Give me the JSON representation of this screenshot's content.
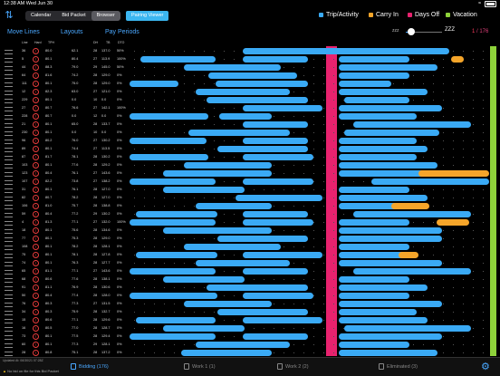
{
  "status": {
    "time": "12:38 AM",
    "date": "Wed Jun 30",
    "wifi": "wifi-icon",
    "battery": "battery-icon"
  },
  "toolbar": {
    "sort_icon": "sort-icon",
    "segments": [
      "Calendar",
      "Bid Packet",
      "Browser"
    ],
    "active_segment": "Browser",
    "pairing_button": "Pairing Viewer"
  },
  "legend": [
    {
      "label": "Trip/Activity",
      "color": "#3aaaf5"
    },
    {
      "label": "Carry In",
      "color": "#f5a52a"
    },
    {
      "label": "Days Off",
      "color": "#e8226e"
    },
    {
      "label": "Vacation",
      "color": "#8ed23a"
    }
  ],
  "nav": {
    "move_lines": "Move Lines",
    "layouts": "Layouts",
    "pay_periods": "Pay Periods"
  },
  "zoom": {
    "small": "zzz",
    "large": "ZZZ",
    "level": 0.1
  },
  "pager": {
    "current": "1",
    "total": "/ 176"
  },
  "columns": [
    "Line",
    "Hard",
    "TPH",
    "DH",
    "TB",
    "DTO"
  ],
  "rows": [
    {
      "line": "36",
      "tph": "80.0",
      "a": "62.1",
      "b": "",
      "c": "28",
      "d": "137.0",
      "e": "50%"
    },
    {
      "line": "5",
      "tph": "80.1",
      "a": "80.4",
      "b": "",
      "c": "27",
      "d": "113.9",
      "e": "100%"
    },
    {
      "line": "44",
      "tph": "88.3",
      "a": "79.0",
      "b": "",
      "c": "29",
      "d": "145.0",
      "e": "50%"
    },
    {
      "line": "64",
      "tph": "81.6",
      "a": "74.2",
      "b": "",
      "c": "28",
      "d": "129.0",
      "e": "0%"
    },
    {
      "line": "111",
      "tph": "80.1",
      "a": "75.0",
      "b": "",
      "c": "28",
      "d": "129.0",
      "e": "0%"
    },
    {
      "line": "12",
      "tph": "82.3",
      "a": "63.0",
      "b": "",
      "c": "27",
      "d": "121.0",
      "e": "0%"
    },
    {
      "line": "229",
      "tph": "80.1",
      "a": "0.0",
      "b": "",
      "c": "10",
      "d": "0.0",
      "e": "0%"
    },
    {
      "line": "27",
      "tph": "80.7",
      "a": "76.6",
      "b": "",
      "c": "27",
      "d": "142.1",
      "e": "100%"
    },
    {
      "line": "228",
      "tph": "80.7",
      "a": "0.0",
      "b": "",
      "c": "12",
      "d": "0.0",
      "e": "0%"
    },
    {
      "line": "21",
      "tph": "80.1",
      "a": "65.0",
      "b": "",
      "c": "28",
      "d": "133.7",
      "e": "0%"
    },
    {
      "line": "230",
      "tph": "80.1",
      "a": "0.0",
      "b": "",
      "c": "10",
      "d": "0.0",
      "e": "0%"
    },
    {
      "line": "96",
      "tph": "80.2",
      "a": "76.0",
      "b": "",
      "c": "27",
      "d": "130.2",
      "e": "0%"
    },
    {
      "line": "89",
      "tph": "80.1",
      "a": "74.4",
      "b": "",
      "c": "27",
      "d": "113.5",
      "e": "0%"
    },
    {
      "line": "87",
      "tph": "81.7",
      "a": "78.1",
      "b": "",
      "c": "28",
      "d": "130.2",
      "e": "0%"
    },
    {
      "line": "103",
      "tph": "80.1",
      "a": "77.6",
      "b": "",
      "c": "28",
      "d": "129.2",
      "e": "0%"
    },
    {
      "line": "123",
      "tph": "80.4",
      "a": "76.1",
      "b": "",
      "c": "27",
      "d": "143.6",
      "e": "0%"
    },
    {
      "line": "107",
      "tph": "82.2",
      "a": "73.8",
      "b": "",
      "c": "27",
      "d": "138.2",
      "e": "0%"
    },
    {
      "line": "31",
      "tph": "80.1",
      "a": "76.1",
      "b": "",
      "c": "28",
      "d": "127.0",
      "e": "0%"
    },
    {
      "line": "82",
      "tph": "80.7",
      "a": "78.2",
      "b": "",
      "c": "28",
      "d": "127.0",
      "e": "0%"
    },
    {
      "line": "106",
      "tph": "81.0",
      "a": "75.7",
      "b": "",
      "c": "28",
      "d": "138.8",
      "e": "0%"
    },
    {
      "line": "59",
      "tph": "80.4",
      "a": "77.2",
      "b": "",
      "c": "29",
      "d": "130.2",
      "e": "0%"
    },
    {
      "line": "4",
      "tph": "81.3",
      "a": "77.1",
      "b": "",
      "c": "27",
      "d": "132.0",
      "e": "100%"
    },
    {
      "line": "18",
      "tph": "80.1",
      "a": "75.6",
      "b": "",
      "c": "28",
      "d": "134.6",
      "e": "0%"
    },
    {
      "line": "77",
      "tph": "80.1",
      "a": "75.3",
      "b": "",
      "c": "28",
      "d": "129.0",
      "e": "0%"
    },
    {
      "line": "108",
      "tph": "80.1",
      "a": "78.2",
      "b": "",
      "c": "28",
      "d": "128.1",
      "e": "0%"
    },
    {
      "line": "75",
      "tph": "80.1",
      "a": "78.1",
      "b": "",
      "c": "28",
      "d": "127.8",
      "e": "0%"
    },
    {
      "line": "74",
      "tph": "80.1",
      "a": "76.3",
      "b": "",
      "c": "28",
      "d": "127.7",
      "e": "0%"
    },
    {
      "line": "65",
      "tph": "81.1",
      "a": "77.1",
      "b": "",
      "c": "27",
      "d": "143.6",
      "e": "0%"
    },
    {
      "line": "68",
      "tph": "80.6",
      "a": "77.6",
      "b": "",
      "c": "28",
      "d": "138.1",
      "e": "0%"
    },
    {
      "line": "91",
      "tph": "81.1",
      "a": "76.9",
      "b": "",
      "c": "28",
      "d": "130.6",
      "e": "0%"
    },
    {
      "line": "50",
      "tph": "80.4",
      "a": "77.4",
      "b": "",
      "c": "28",
      "d": "128.0",
      "e": "0%"
    },
    {
      "line": "76",
      "tph": "80.3",
      "a": "77.3",
      "b": "",
      "c": "27",
      "d": "131.5",
      "e": "0%"
    },
    {
      "line": "34",
      "tph": "80.3",
      "a": "75.9",
      "b": "",
      "c": "28",
      "d": "132.7",
      "e": "0%"
    },
    {
      "line": "15",
      "tph": "80.6",
      "a": "77.1",
      "b": "",
      "c": "28",
      "d": "129.6",
      "e": "0%"
    },
    {
      "line": "16",
      "tph": "80.5",
      "a": "77.0",
      "b": "",
      "c": "28",
      "d": "128.7",
      "e": "0%"
    },
    {
      "line": "73",
      "tph": "80.1",
      "a": "77.5",
      "b": "",
      "c": "28",
      "d": "129.4",
      "e": "0%"
    },
    {
      "line": "60",
      "tph": "80.1",
      "a": "77.3",
      "b": "",
      "c": "29",
      "d": "128.1",
      "e": "0%"
    },
    {
      "line": "28",
      "tph": "80.8",
      "a": "75.1",
      "b": "",
      "c": "28",
      "d": "137.2",
      "e": "0%"
    }
  ],
  "bottom": {
    "updated": "Updated At: 06/30/21 07:28Z",
    "no_bid": "No bid on file for this Bid Packet",
    "tabs": [
      "Bidding (176)",
      "Work 1 (1)",
      "Work 2 (2)",
      "Eliminated (3)"
    ],
    "settings": "gear-icon"
  }
}
